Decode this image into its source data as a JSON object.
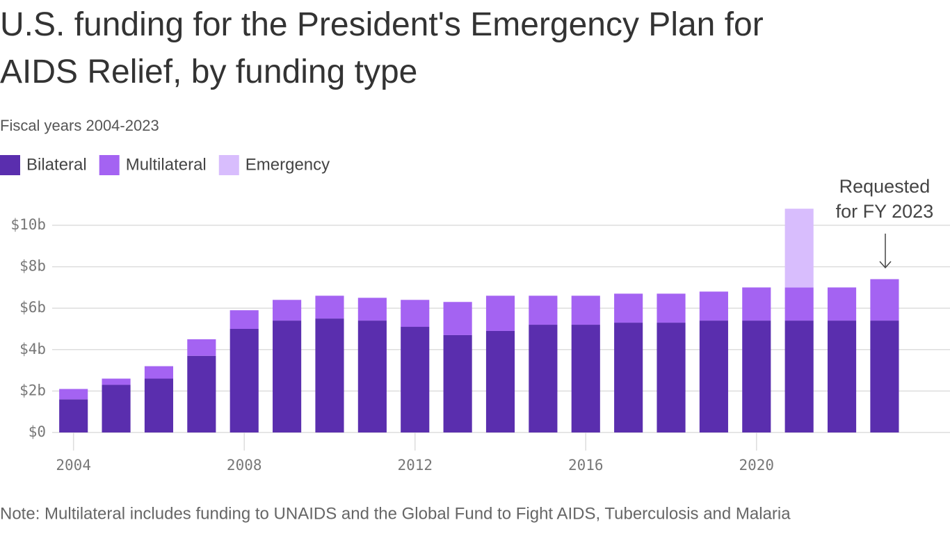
{
  "chart_data": {
    "type": "stacked-bar",
    "title": "U.S. funding for the President's Emergency Plan for AIDS Relief, by funding type",
    "subtitle": "Fiscal years 2004-2023",
    "note": "Note: Multilateral includes funding to UNAIDS and the Global Fund to Fight AIDS, Tuberculosis and Malaria",
    "annotation": [
      "Requested",
      "for FY 2023"
    ],
    "x": [
      2004,
      2005,
      2006,
      2007,
      2008,
      2009,
      2010,
      2011,
      2012,
      2013,
      2014,
      2015,
      2016,
      2017,
      2018,
      2019,
      2020,
      2021,
      2022,
      2023
    ],
    "series": [
      {
        "name": "Bilateral",
        "color": "#5a2eae",
        "values": [
          1.6,
          2.3,
          2.6,
          3.7,
          5.0,
          5.4,
          5.5,
          5.4,
          5.1,
          4.7,
          4.9,
          5.2,
          5.2,
          5.3,
          5.3,
          5.4,
          5.4,
          5.4,
          5.4,
          5.4
        ]
      },
      {
        "name": "Multilateral",
        "color": "#a463f2",
        "values": [
          0.5,
          0.3,
          0.6,
          0.8,
          0.9,
          1.0,
          1.1,
          1.1,
          1.3,
          1.6,
          1.7,
          1.4,
          1.4,
          1.4,
          1.4,
          1.4,
          1.6,
          1.6,
          1.6,
          2.0
        ]
      },
      {
        "name": "Emergency",
        "color": "#d8bdfd",
        "values": [
          null,
          null,
          null,
          null,
          null,
          null,
          null,
          null,
          null,
          null,
          null,
          null,
          null,
          null,
          null,
          null,
          null,
          3.8,
          null,
          null
        ]
      }
    ],
    "xlim": [
      2003.5,
      2024.5
    ],
    "xticks": [
      2004,
      2008,
      2012,
      2016,
      2020
    ],
    "ylim": [
      0,
      11
    ],
    "yticks": [
      {
        "value": 0,
        "label": "$0"
      },
      {
        "value": 2,
        "label": "$2b"
      },
      {
        "value": 4,
        "label": "$4b"
      },
      {
        "value": 6,
        "label": "$6b"
      },
      {
        "value": 8,
        "label": "$8b"
      },
      {
        "value": 10,
        "label": "$10b"
      }
    ],
    "grid": true
  }
}
